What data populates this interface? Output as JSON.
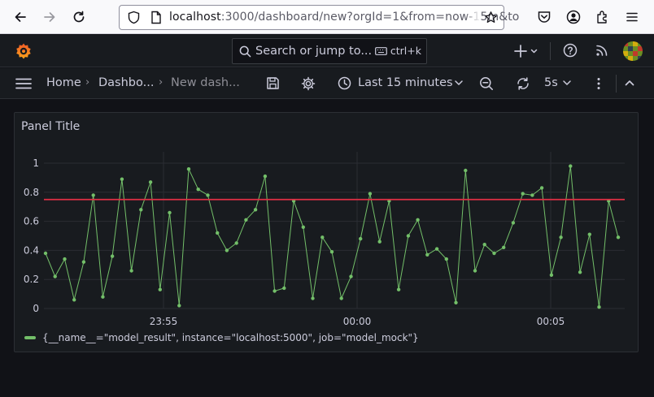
{
  "browser": {
    "url_host": "localhost",
    "url_rest": ":3000/dashboard/new?orgId=1&from=now-15m&to"
  },
  "topbar": {
    "search_placeholder": "Search or jump to...",
    "shortcut": "ctrl+k"
  },
  "nav": {
    "breadcrumbs": [
      "Home",
      "Dashbo...",
      "New dash..."
    ],
    "time_range": "Last 15 minutes",
    "refresh_interval": "5s"
  },
  "colors": {
    "series": "#73bf69",
    "threshold": "#e02f44"
  },
  "panel": {
    "title": "Panel Title"
  },
  "chart_data": {
    "type": "line",
    "title": "Panel Title",
    "xlabel": "",
    "ylabel": "",
    "ylim": [
      0,
      1
    ],
    "yticks": [
      "0",
      "0.2",
      "0.4",
      "0.6",
      "0.8",
      "1"
    ],
    "xticks": [
      "23:55",
      "00:00",
      "00:05"
    ],
    "grid": true,
    "legend_position": "bottom-left",
    "threshold": 0.75,
    "series": [
      {
        "name": "{__name__=\"model_result\", instance=\"localhost:5000\", job=\"model_mock\"}",
        "values": [
          0.38,
          0.22,
          0.34,
          0.06,
          0.32,
          0.78,
          0.08,
          0.36,
          0.89,
          0.26,
          0.68,
          0.87,
          0.13,
          0.66,
          0.02,
          0.96,
          0.82,
          0.78,
          0.52,
          0.4,
          0.45,
          0.61,
          0.68,
          0.91,
          0.12,
          0.14,
          0.74,
          0.56,
          0.07,
          0.49,
          0.39,
          0.07,
          0.22,
          0.48,
          0.79,
          0.46,
          0.74,
          0.13,
          0.5,
          0.61,
          0.37,
          0.41,
          0.34,
          0.04,
          0.95,
          0.26,
          0.44,
          0.38,
          0.42,
          0.59,
          0.79,
          0.78,
          0.83,
          0.23,
          0.49,
          0.98,
          0.25,
          0.51,
          0.01,
          0.74,
          0.49
        ]
      }
    ]
  }
}
